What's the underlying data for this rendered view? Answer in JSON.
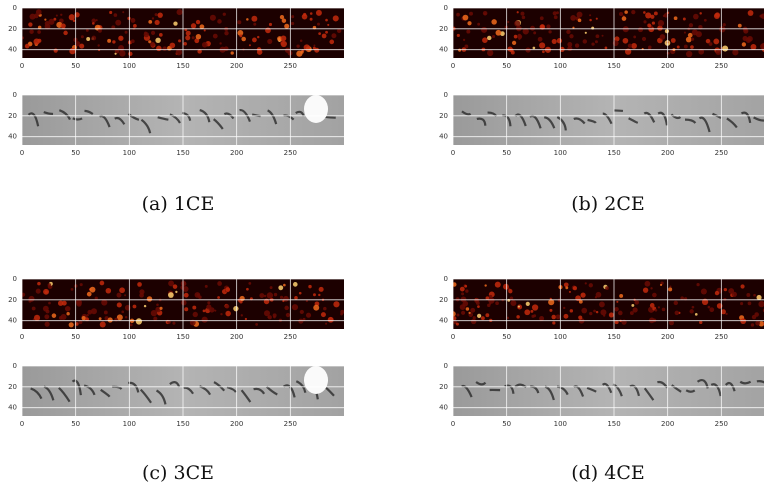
{
  "panels": [
    {
      "caption": "(a) 1CE",
      "plots": [
        {
          "xlim": [
            0,
            300
          ],
          "ylim": [
            0,
            48
          ],
          "xticks": [
            0,
            50,
            100,
            150,
            200,
            250
          ],
          "yticks": [
            0,
            20,
            40
          ]
        },
        {
          "xlim": [
            0,
            300
          ],
          "ylim": [
            0,
            48
          ],
          "xticks": [
            0,
            50,
            100,
            150,
            200,
            250
          ],
          "yticks": [
            0,
            20,
            40
          ]
        }
      ]
    },
    {
      "caption": "(b) 2CE",
      "plots": [
        {
          "xlim": [
            0,
            300
          ],
          "ylim": [
            0,
            48
          ],
          "xticks": [
            0,
            50,
            100,
            150,
            200,
            250
          ],
          "yticks": [
            0,
            20,
            40
          ]
        },
        {
          "xlim": [
            0,
            300
          ],
          "ylim": [
            0,
            48
          ],
          "xticks": [
            0,
            50,
            100,
            150,
            200,
            250
          ],
          "yticks": [
            0,
            20,
            40
          ]
        }
      ]
    },
    {
      "caption": "(c) 3CE",
      "plots": [
        {
          "xlim": [
            0,
            300
          ],
          "ylim": [
            0,
            48
          ],
          "xticks": [
            0,
            50,
            100,
            150,
            200,
            250
          ],
          "yticks": [
            0,
            20,
            40
          ]
        },
        {
          "xlim": [
            0,
            300
          ],
          "ylim": [
            0,
            48
          ],
          "xticks": [
            0,
            50,
            100,
            150,
            200,
            250
          ],
          "yticks": [
            0,
            20,
            40
          ]
        }
      ]
    },
    {
      "caption": "(d) 4CE",
      "plots": [
        {
          "xlim": [
            0,
            300
          ],
          "ylim": [
            0,
            48
          ],
          "xticks": [
            0,
            50,
            100,
            150,
            200,
            250
          ],
          "yticks": [
            0,
            20,
            40
          ]
        },
        {
          "xlim": [
            0,
            300
          ],
          "ylim": [
            0,
            48
          ],
          "xticks": [
            0,
            50,
            100,
            150,
            200,
            250
          ],
          "yticks": [
            0,
            20,
            40
          ]
        }
      ]
    }
  ]
}
